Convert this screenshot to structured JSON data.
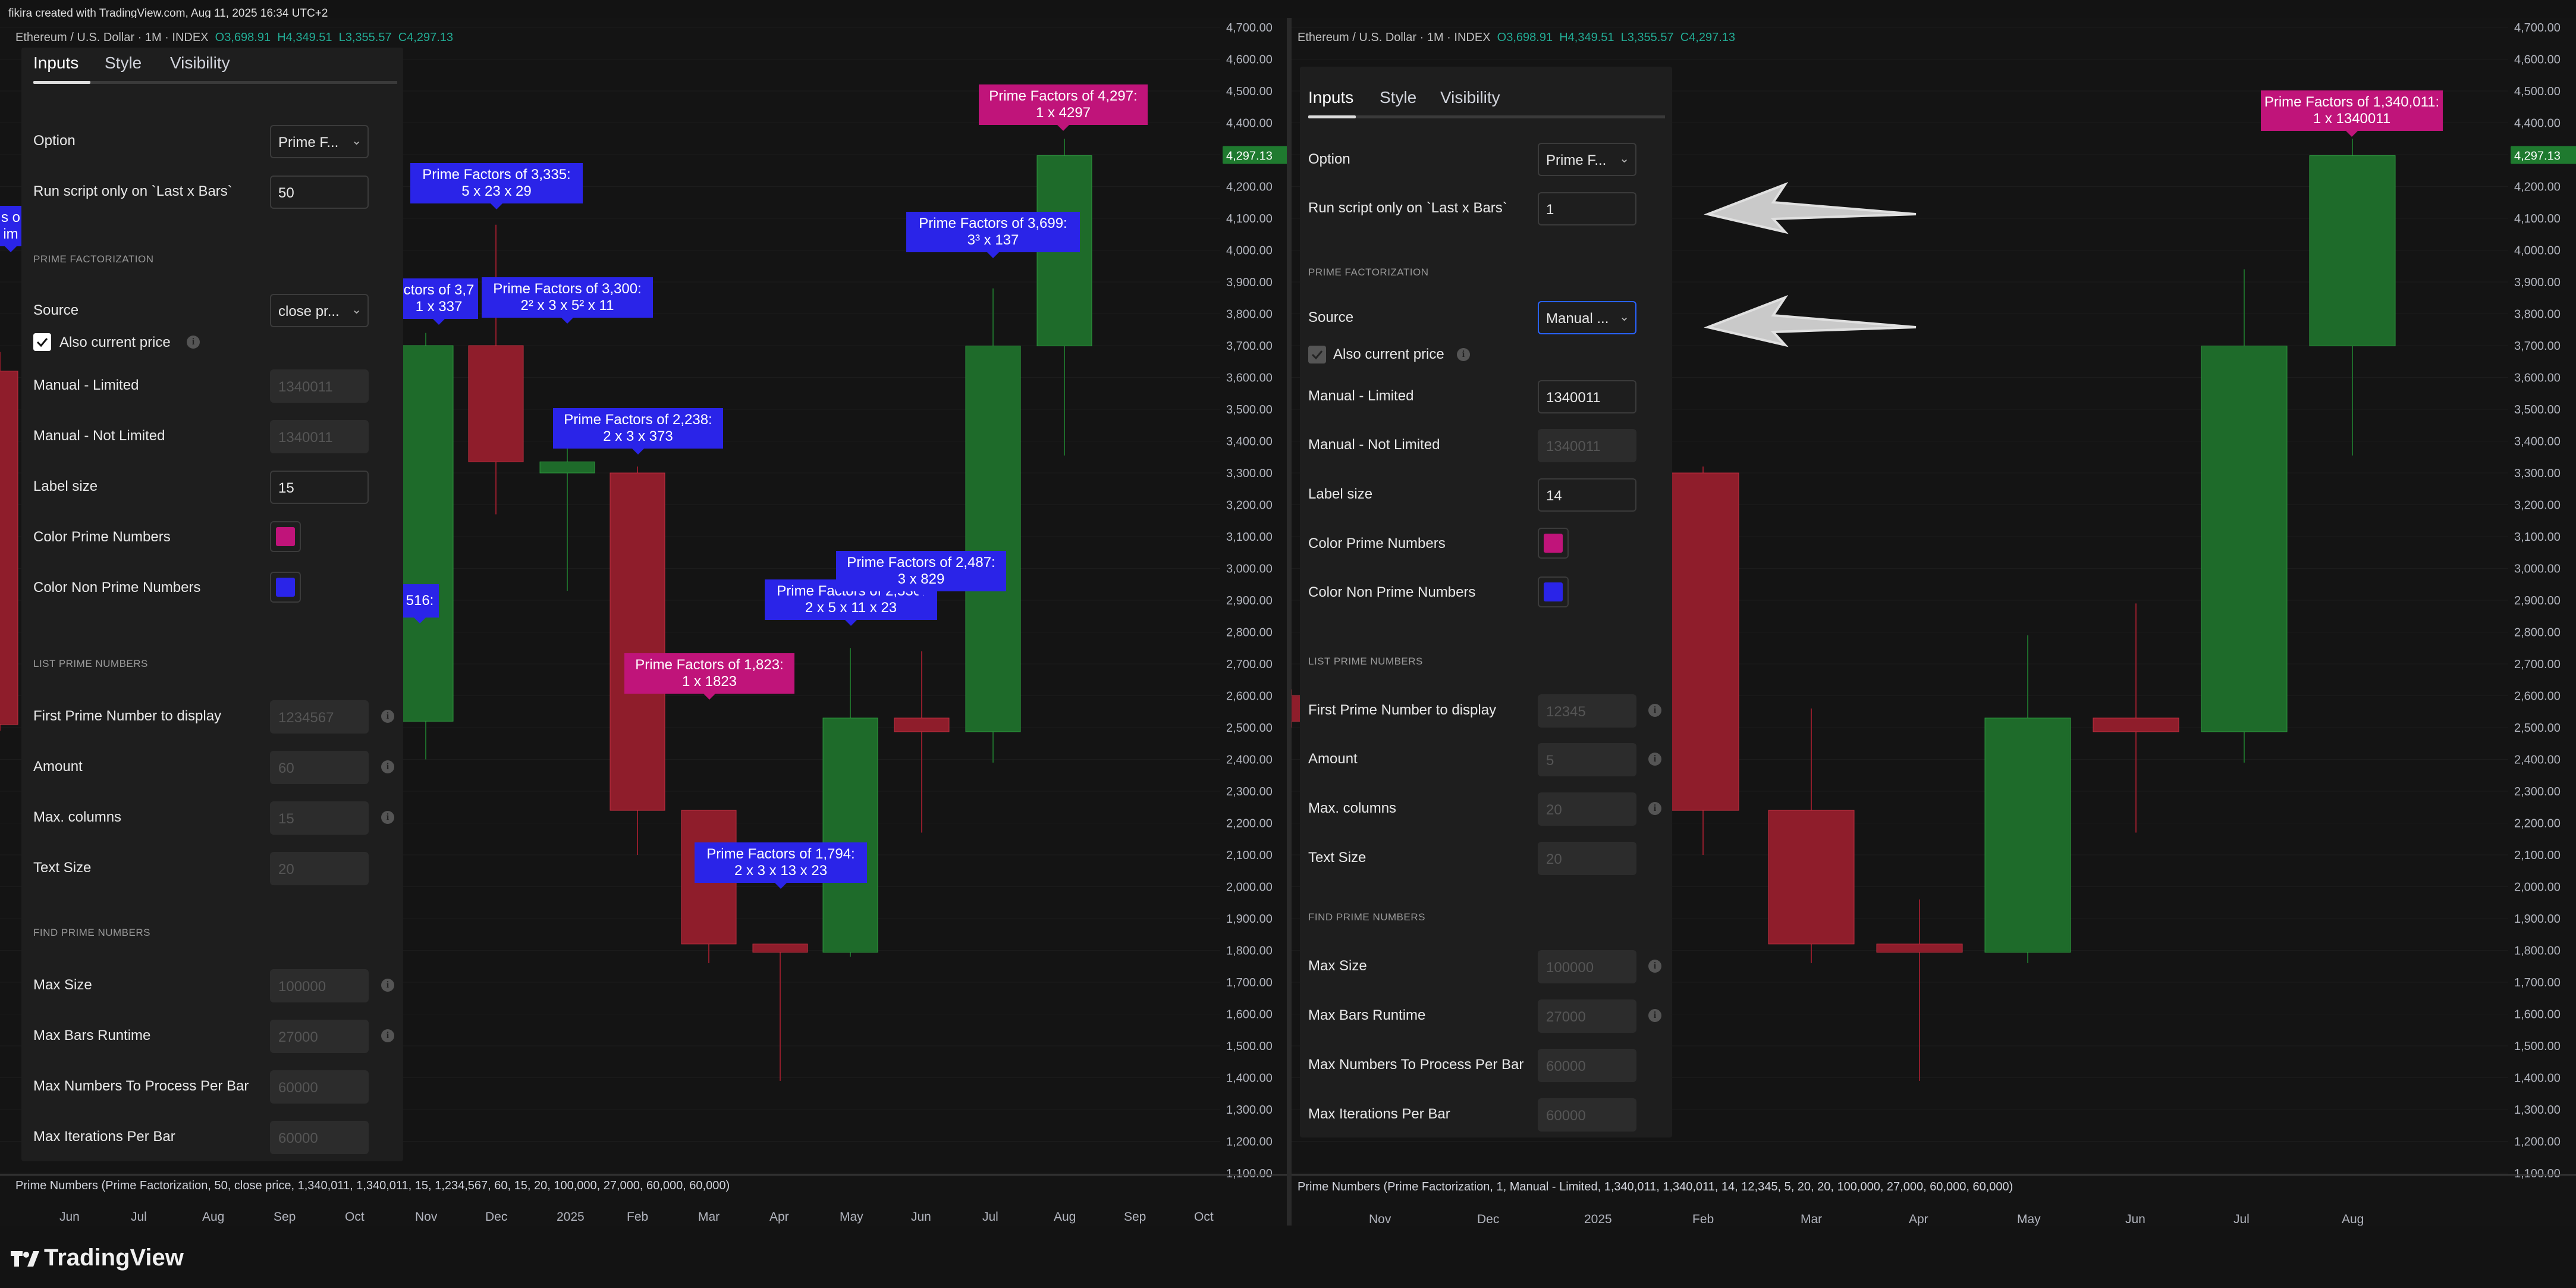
{
  "header": {
    "created_by": "fikira created with TradingView.com, Aug 11, 2025 16:34 UTC+2"
  },
  "symbol": {
    "name": "Ethereum / U.S. Dollar · 1M · INDEX",
    "open": "O3,698.91",
    "high": "H4,349.51",
    "low": "L3,355.57",
    "close": "C4,297.13"
  },
  "price_axis": {
    "ticks": [
      "4,700.00",
      "4,600.00",
      "4,500.00",
      "4,400.00",
      "4,300.00",
      "4,200.00",
      "4,100.00",
      "4,000.00",
      "3,900.00",
      "3,800.00",
      "3,700.00",
      "3,600.00",
      "3,500.00",
      "3,400.00",
      "3,300.00",
      "3,200.00",
      "3,100.00",
      "3,000.00",
      "2,900.00",
      "2,800.00",
      "2,700.00",
      "2,600.00",
      "2,500.00",
      "2,400.00",
      "2,300.00",
      "2,200.00",
      "2,100.00",
      "2,000.00",
      "1,900.00",
      "1,800.00",
      "1,700.00",
      "1,600.00",
      "1,500.00",
      "1,400.00",
      "1,300.00",
      "1,200.00",
      "1,100.00"
    ],
    "last_price": "4,297.13"
  },
  "left": {
    "time_ticks": [
      "Jun",
      "Jul",
      "Aug",
      "Sep",
      "Oct",
      "Nov",
      "Dec",
      "2025",
      "Feb",
      "Mar",
      "Apr",
      "May",
      "Jun",
      "Jul",
      "Aug",
      "Sep",
      "Oct"
    ],
    "status": "Prime Numbers (Prime Factorization, 50, close price, 1,340,011, 1,340,011, 15, 1,234,567, 60, 15, 20, 100,000, 27,000, 60,000, 60,000)",
    "labels": {
      "l3335_a": "Prime Factors of 3,335:",
      "l3335_b": "5 x 23 x 29",
      "l37_a": "ctors of 3,7",
      "l37_b": "1 x 337",
      "l3300_a": "Prime Factors of 3,300:",
      "l3300_b": "2² x 3 x 5² x 11",
      "l2238_a": "Prime Factors of 2,238:",
      "l2238_b": "2 x 3 x 373",
      "l3699_a": "Prime Factors of 3,699:",
      "l3699_b": "3³ x 137",
      "l4297_a": "Prime Factors of 4,297:",
      "l4297_b": "1 x 4297",
      "l2487_a": "Prime Factors of 2,487:",
      "l2487_b": "3 x 829",
      "l2530_a": "Prime Factors of 2,530:",
      "l2530_b": "2 x 5 x 11 x 23",
      "l1823_a": "Prime Factors of 1,823:",
      "l1823_b": "1 x 1823",
      "l1794_a": "Prime Factors of 1,794:",
      "l1794_b": "2 x 3 x 13 x 23",
      "l516": "516:",
      "lcut_a": "s o",
      "lcut_b": "im"
    },
    "panel": {
      "tabs": [
        "Inputs",
        "Style",
        "Visibility"
      ],
      "option_label": "Option",
      "option_value": "Prime F...",
      "run_label": "Run script only on `Last x Bars`",
      "run_value": "50",
      "sec_prime": "PRIME FACTORIZATION",
      "source_label": "Source",
      "source_value": "close pr...",
      "also_label": "Also current price",
      "manual_lim_label": "Manual - Limited",
      "manual_lim_value": "1340011",
      "manual_nolim_label": "Manual - Not Limited",
      "manual_nolim_value": "1340011",
      "label_size_label": "Label size",
      "label_size_value": "15",
      "color_prime_label": "Color Prime Numbers",
      "color_prime": "#c0147a",
      "color_nonprime_label": "Color Non Prime Numbers",
      "color_nonprime": "#2a24e8",
      "sec_list": "LIST PRIME NUMBERS",
      "first_label": "First Prime Number to display",
      "first_value": "1234567",
      "amount_label": "Amount",
      "amount_value": "60",
      "maxcol_label": "Max. columns",
      "maxcol_value": "15",
      "textsize_label": "Text Size",
      "textsize_value": "20",
      "sec_find": "FIND PRIME NUMBERS",
      "maxsize_label": "Max Size",
      "maxsize_value": "100000",
      "maxbars_label": "Max Bars Runtime",
      "maxbars_value": "27000",
      "maxnum_label": "Max Numbers To Process Per Bar",
      "maxnum_value": "60000",
      "maxiter_label": "Max Iterations Per Bar",
      "maxiter_value": "60000"
    }
  },
  "right": {
    "time_ticks": [
      "Nov",
      "Dec",
      "2025",
      "Feb",
      "Mar",
      "Apr",
      "May",
      "Jun",
      "Jul",
      "Aug"
    ],
    "status": "Prime Numbers (Prime Factorization, 1, Manual - Limited, 1,340,011, 1,340,011, 14, 12,345, 5, 20, 20, 100,000, 27,000, 60,000, 60,000)",
    "labels": {
      "l1340011_a": "Prime Factors of 1,340,011:",
      "l1340011_b": "1 x 1340011"
    },
    "panel": {
      "tabs": [
        "Inputs",
        "Style",
        "Visibility"
      ],
      "option_label": "Option",
      "option_value": "Prime F...",
      "run_label": "Run script only on `Last x Bars`",
      "run_value": "1",
      "sec_prime": "PRIME FACTORIZATION",
      "source_label": "Source",
      "source_value": "Manual ...",
      "also_label": "Also current price",
      "manual_lim_label": "Manual - Limited",
      "manual_lim_value": "1340011",
      "manual_nolim_label": "Manual - Not Limited",
      "manual_nolim_value": "1340011",
      "label_size_label": "Label size",
      "label_size_value": "14",
      "color_prime_label": "Color Prime Numbers",
      "color_prime": "#c0147a",
      "color_nonprime_label": "Color Non Prime Numbers",
      "color_nonprime": "#2a24e8",
      "sec_list": "LIST PRIME NUMBERS",
      "first_label": "First Prime Number to display",
      "first_value": "12345",
      "amount_label": "Amount",
      "amount_value": "5",
      "maxcol_label": "Max. columns",
      "maxcol_value": "20",
      "textsize_label": "Text Size",
      "textsize_value": "20",
      "sec_find": "FIND PRIME NUMBERS",
      "maxsize_label": "Max Size",
      "maxsize_value": "100000",
      "maxbars_label": "Max Bars Runtime",
      "maxbars_value": "27000",
      "maxnum_label": "Max Numbers To Process Per Bar",
      "maxnum_value": "60000",
      "maxiter_label": "Max Iterations Per Bar",
      "maxiter_value": "60000"
    }
  },
  "brand": {
    "name": "TradingView"
  },
  "colors": {
    "up": "#1e6b2a",
    "down": "#8f1d2b",
    "prime": "#c0147a",
    "nonprime": "#2a24e8",
    "focus": "#2962ff"
  }
}
